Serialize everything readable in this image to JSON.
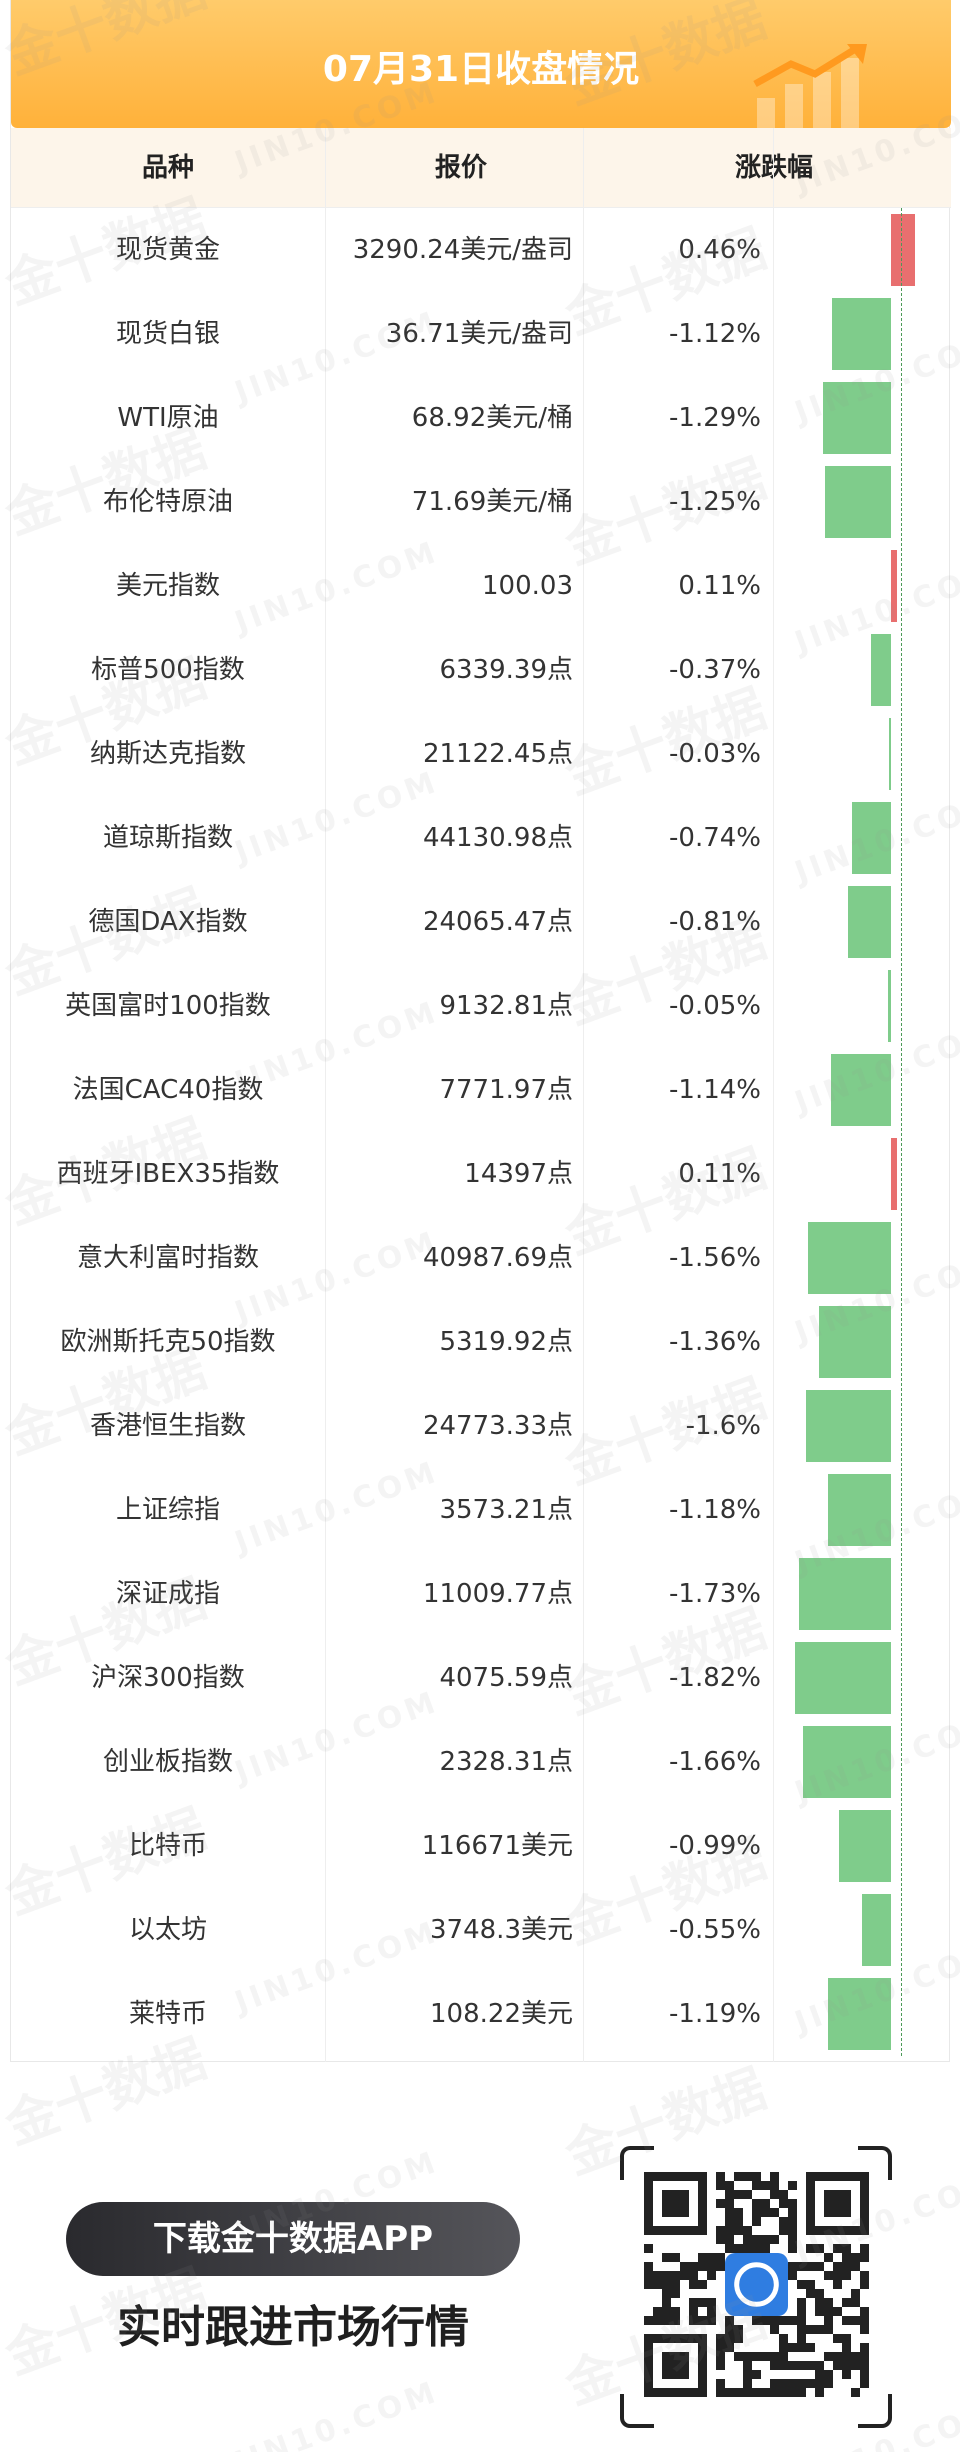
{
  "header": {
    "title": "07月31日收盘情况"
  },
  "columns": {
    "name": "品种",
    "price": "报价",
    "change": "涨跌幅"
  },
  "colors": {
    "header_orange": "#ffb13a",
    "bar_down": "#7fcc8b",
    "bar_up": "#e86f6f"
  },
  "rows": [
    {
      "name": "现货黄金",
      "price": "3290.24美元/盎司",
      "change_text": "0.46%",
      "change": 0.46
    },
    {
      "name": "现货白银",
      "price": "36.71美元/盎司",
      "change_text": "-1.12%",
      "change": -1.12
    },
    {
      "name": "WTI原油",
      "price": "68.92美元/桶",
      "change_text": "-1.29%",
      "change": -1.29
    },
    {
      "name": "布伦特原油",
      "price": "71.69美元/桶",
      "change_text": "-1.25%",
      "change": -1.25
    },
    {
      "name": "美元指数",
      "price": "100.03",
      "change_text": "0.11%",
      "change": 0.11
    },
    {
      "name": "标普500指数",
      "price": "6339.39点",
      "change_text": "-0.37%",
      "change": -0.37
    },
    {
      "name": "纳斯达克指数",
      "price": "21122.45点",
      "change_text": "-0.03%",
      "change": -0.03
    },
    {
      "name": "道琼斯指数",
      "price": "44130.98点",
      "change_text": "-0.74%",
      "change": -0.74
    },
    {
      "name": "德国DAX指数",
      "price": "24065.47点",
      "change_text": "-0.81%",
      "change": -0.81
    },
    {
      "name": "英国富时100指数",
      "price": "9132.81点",
      "change_text": "-0.05%",
      "change": -0.05
    },
    {
      "name": "法国CAC40指数",
      "price": "7771.97点",
      "change_text": "-1.14%",
      "change": -1.14
    },
    {
      "name": "西班牙IBEX35指数",
      "price": "14397点",
      "change_text": "0.11%",
      "change": 0.11
    },
    {
      "name": "意大利富时指数",
      "price": "40987.69点",
      "change_text": "-1.56%",
      "change": -1.56
    },
    {
      "name": "欧洲斯托克50指数",
      "price": "5319.92点",
      "change_text": "-1.36%",
      "change": -1.36
    },
    {
      "name": "香港恒生指数",
      "price": "24773.33点",
      "change_text": "-1.6%",
      "change": -1.6
    },
    {
      "name": "上证综指",
      "price": "3573.21点",
      "change_text": "-1.18%",
      "change": -1.18
    },
    {
      "name": "深证成指",
      "price": "11009.77点",
      "change_text": "-1.73%",
      "change": -1.73
    },
    {
      "name": "沪深300指数",
      "price": "4075.59点",
      "change_text": "-1.82%",
      "change": -1.82
    },
    {
      "name": "创业板指数",
      "price": "2328.31点",
      "change_text": "-1.66%",
      "change": -1.66
    },
    {
      "name": "比特币",
      "price": "116671美元",
      "change_text": "-0.99%",
      "change": -0.99
    },
    {
      "name": "以太坊",
      "price": "3748.3美元",
      "change_text": "-0.55%",
      "change": -0.55
    },
    {
      "name": "莱特币",
      "price": "108.22美元",
      "change_text": "-1.19%",
      "change": -1.19
    }
  ],
  "promo": {
    "button": "下载金十数据APP",
    "tagline": "实时跟进市场行情"
  },
  "watermark": {
    "cn": "金十数据",
    "en": "JIN10.COM"
  },
  "icons": {
    "header_deco": "rising-chart-icon",
    "qr": "qr-code-icon",
    "qr_logo": "jin10-logo-icon"
  }
}
